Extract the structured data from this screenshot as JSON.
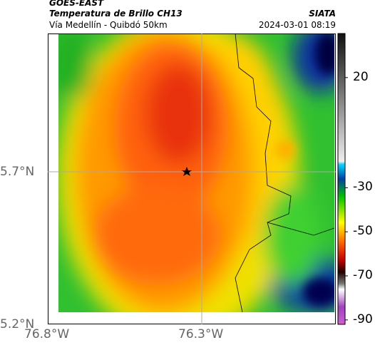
{
  "header": {
    "satellite": "GOES-EAST",
    "product": "Temperatura de Brillo CH13",
    "source": "SIATA",
    "route": "Vía Medellín - Quibdó 50km",
    "timestamp": "2024-03-01 08:19"
  },
  "map": {
    "xticks": [
      "76.8°W",
      "76.3°W"
    ],
    "yticks": [
      "5.7°N",
      "5.2°N"
    ]
  },
  "colorbar": {
    "range": [
      40,
      -92
    ],
    "ticks": [
      20,
      -30,
      -50,
      -70,
      -90
    ]
  }
}
